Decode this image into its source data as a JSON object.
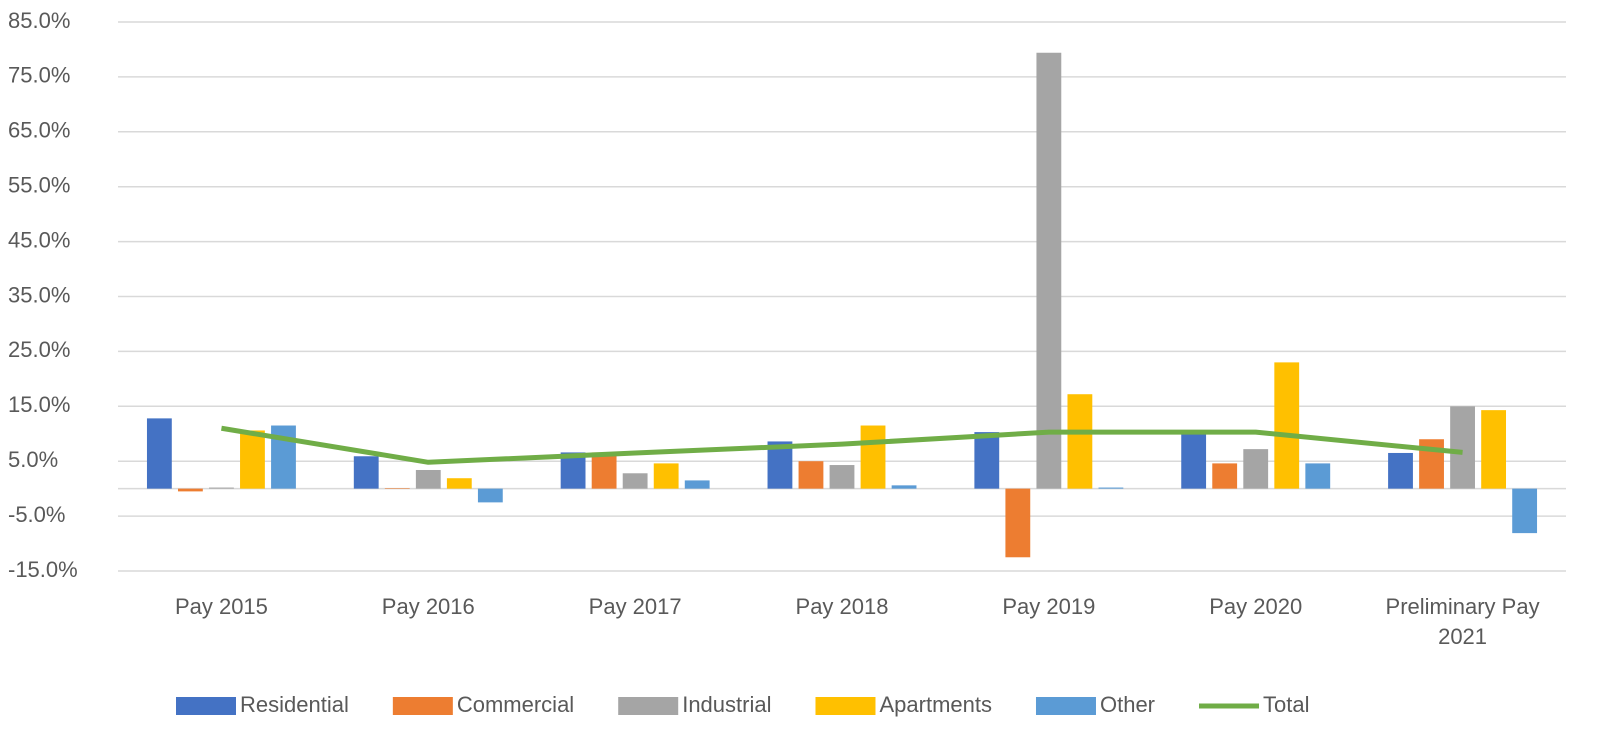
{
  "chart_data": {
    "type": "bar",
    "categories": [
      "Pay 2015",
      "Pay 2016",
      "Pay 2017",
      "Pay 2018",
      "Pay 2019",
      "Pay 2020",
      "Preliminary Pay 2021"
    ],
    "series": [
      {
        "name": "Residential",
        "color": "#4472c4",
        "values": [
          12.8,
          5.9,
          6.6,
          8.6,
          10.3,
          9.9,
          6.5
        ]
      },
      {
        "name": "Commercial",
        "color": "#ed7d31",
        "values": [
          -0.5,
          0.1,
          6.6,
          5.0,
          -12.5,
          4.6,
          9.0
        ]
      },
      {
        "name": "Industrial",
        "color": "#a5a5a5",
        "values": [
          0.2,
          3.4,
          2.8,
          4.3,
          79.4,
          7.2,
          15.0
        ]
      },
      {
        "name": "Apartments",
        "color": "#ffc000",
        "values": [
          10.6,
          1.9,
          4.6,
          11.5,
          17.2,
          23.0,
          14.3
        ]
      },
      {
        "name": "Other",
        "color": "#5b9bd5",
        "values": [
          11.5,
          -2.5,
          1.5,
          0.6,
          0.2,
          4.6,
          -8.1
        ]
      },
      {
        "name": "Total",
        "color": "#70ad47",
        "type": "line",
        "values": [
          11.0,
          4.8,
          6.5,
          8.1,
          10.3,
          10.3,
          6.6
        ]
      }
    ],
    "ylim": [
      -15,
      85
    ],
    "yticks": [
      {
        "value": -15,
        "label": "-15.0%"
      },
      {
        "value": -5,
        "label": "-5.0%"
      },
      {
        "value": 5,
        "label": "5.0%"
      },
      {
        "value": 15,
        "label": "15.0%"
      },
      {
        "value": 25,
        "label": "25.0%"
      },
      {
        "value": 35,
        "label": "35.0%"
      },
      {
        "value": 45,
        "label": "45.0%"
      },
      {
        "value": 55,
        "label": "55.0%"
      },
      {
        "value": 65,
        "label": "65.0%"
      },
      {
        "value": 75,
        "label": "75.0%"
      },
      {
        "value": 85,
        "label": "85.0%"
      }
    ],
    "grid": true,
    "legend": "bottom"
  }
}
